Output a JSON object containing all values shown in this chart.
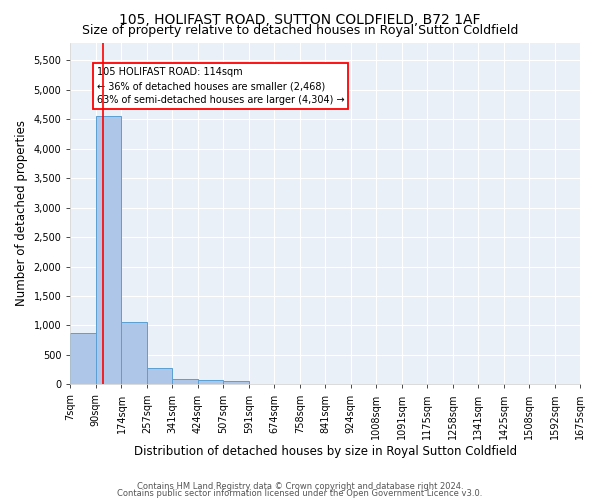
{
  "title": "105, HOLIFAST ROAD, SUTTON COLDFIELD, B72 1AF",
  "subtitle": "Size of property relative to detached houses in Royal Sutton Coldfield",
  "xlabel": "Distribution of detached houses by size in Royal Sutton Coldfield",
  "ylabel": "Number of detached properties",
  "footer_line1": "Contains HM Land Registry data © Crown copyright and database right 2024.",
  "footer_line2": "Contains public sector information licensed under the Open Government Licence v3.0.",
  "bin_labels": [
    "7sqm",
    "90sqm",
    "174sqm",
    "257sqm",
    "341sqm",
    "424sqm",
    "507sqm",
    "591sqm",
    "674sqm",
    "758sqm",
    "841sqm",
    "924sqm",
    "1008sqm",
    "1091sqm",
    "1175sqm",
    "1258sqm",
    "1341sqm",
    "1425sqm",
    "1508sqm",
    "1592sqm",
    "1675sqm"
  ],
  "bar_values": [
    880,
    4560,
    1060,
    280,
    90,
    80,
    50,
    0,
    0,
    0,
    0,
    0,
    0,
    0,
    0,
    0,
    0,
    0,
    0,
    0
  ],
  "bin_edges": [
    7,
    90,
    174,
    257,
    341,
    424,
    507,
    591,
    674,
    758,
    841,
    924,
    1008,
    1091,
    1175,
    1258,
    1341,
    1425,
    1508,
    1592,
    1675
  ],
  "bar_color": "#aec6e8",
  "bar_edge_color": "#5a9fd4",
  "red_line_x": 114,
  "annotation_text": "105 HOLIFAST ROAD: 114sqm\n← 36% of detached houses are smaller (2,468)\n63% of semi-detached houses are larger (4,304) →",
  "annotation_box_color": "white",
  "annotation_box_edge_color": "red",
  "ylim": [
    0,
    5800
  ],
  "yticks": [
    0,
    500,
    1000,
    1500,
    2000,
    2500,
    3000,
    3500,
    4000,
    4500,
    5000,
    5500
  ],
  "bg_color": "#eaf0f8",
  "grid_color": "white",
  "title_fontsize": 10,
  "subtitle_fontsize": 9,
  "xlabel_fontsize": 8.5,
  "ylabel_fontsize": 8.5,
  "tick_fontsize": 7,
  "footer_fontsize": 6
}
